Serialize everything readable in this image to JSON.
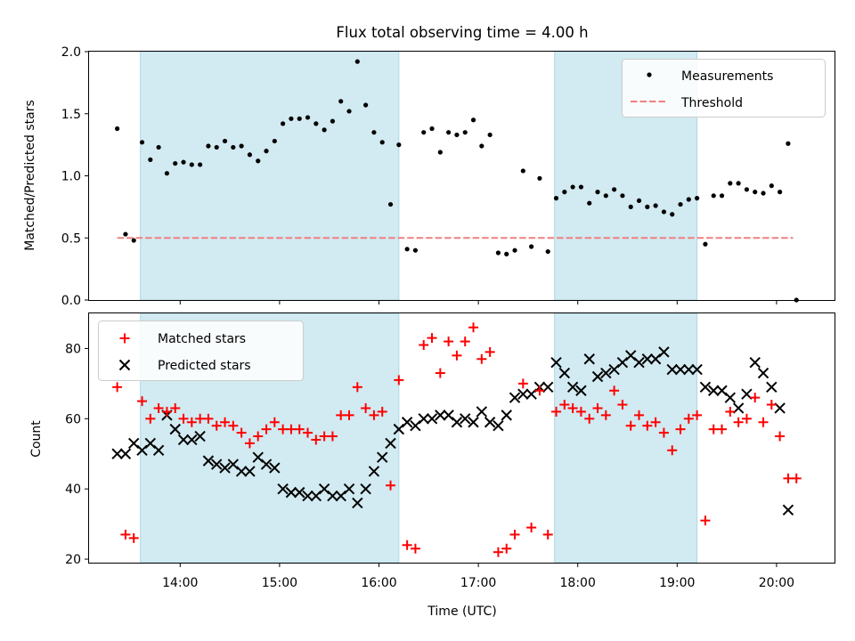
{
  "title": "Flux total observing time = 4.00 h",
  "colors": {
    "measurements": "#000000",
    "threshold": "#f08080",
    "matched": "#ff0000",
    "predicted": "#000000",
    "shade": "#add8e6"
  },
  "chart_data": [
    {
      "type": "scatter",
      "ylabel": "Matched/Predicted stars",
      "xlabel": "",
      "ylim": [
        0.0,
        2.0
      ],
      "yticks": [
        0.0,
        0.5,
        1.0,
        1.5,
        2.0
      ],
      "ytick_labels": [
        "0.0",
        "0.5",
        "1.0",
        "1.5",
        "2.0"
      ],
      "grid": false,
      "legend_position": "top-right",
      "legend": [
        "Measurements",
        "Threshold"
      ],
      "threshold": {
        "name": "Threshold",
        "value": 0.5,
        "x_range": [
          "13:22",
          "20:10"
        ]
      },
      "series": [
        {
          "name": "Measurements",
          "x": [
            "13:22",
            "13:27",
            "13:32",
            "13:37",
            "13:42",
            "13:47",
            "13:52",
            "13:57",
            "14:02",
            "14:07",
            "14:12",
            "14:17",
            "14:22",
            "14:27",
            "14:32",
            "14:37",
            "14:42",
            "14:47",
            "14:52",
            "14:57",
            "15:02",
            "15:07",
            "15:12",
            "15:17",
            "15:22",
            "15:27",
            "15:32",
            "15:37",
            "15:42",
            "15:47",
            "15:52",
            "15:57",
            "16:02",
            "16:07",
            "16:12",
            "16:17",
            "16:22",
            "16:27",
            "16:32",
            "16:37",
            "16:42",
            "16:47",
            "16:52",
            "16:57",
            "17:02",
            "17:07",
            "17:12",
            "17:17",
            "17:22",
            "17:27",
            "17:32",
            "17:37",
            "17:42",
            "17:47",
            "17:52",
            "17:57",
            "18:02",
            "18:07",
            "18:12",
            "18:17",
            "18:22",
            "18:27",
            "18:32",
            "18:37",
            "18:42",
            "18:47",
            "18:52",
            "18:57",
            "19:02",
            "19:07",
            "19:12",
            "19:17",
            "19:22",
            "19:27",
            "19:32",
            "19:37",
            "19:42",
            "19:47",
            "19:52",
            "19:57",
            "20:02",
            "20:07",
            "20:12"
          ],
          "y": [
            1.38,
            0.53,
            0.48,
            1.27,
            1.13,
            1.23,
            1.02,
            1.1,
            1.11,
            1.09,
            1.09,
            1.24,
            1.23,
            1.28,
            1.23,
            1.24,
            1.17,
            1.12,
            1.2,
            1.28,
            1.42,
            1.46,
            1.46,
            1.47,
            1.42,
            1.37,
            1.44,
            1.6,
            1.52,
            1.92,
            1.57,
            1.35,
            1.27,
            0.77,
            1.25,
            0.41,
            0.4,
            1.35,
            1.38,
            1.19,
            1.35,
            1.33,
            1.35,
            1.45,
            1.24,
            1.33,
            0.38,
            0.37,
            0.4,
            1.04,
            0.43,
            0.98,
            0.39,
            0.82,
            0.87,
            0.91,
            0.91,
            0.78,
            0.87,
            0.84,
            0.89,
            0.84,
            0.75,
            0.8,
            0.75,
            0.76,
            0.71,
            0.69,
            0.77,
            0.81,
            0.82,
            0.45,
            0.84,
            0.84,
            0.94,
            0.94,
            0.89,
            0.87,
            0.86,
            0.92,
            0.87,
            1.26,
            0.0
          ]
        }
      ]
    },
    {
      "type": "scatter",
      "xlabel": "Time (UTC)",
      "ylabel": "Count",
      "ylim": [
        19,
        90
      ],
      "yticks": [
        20,
        40,
        60,
        80
      ],
      "ytick_labels": [
        "20",
        "40",
        "60",
        "80"
      ],
      "xlim": [
        "13:05",
        "20:35"
      ],
      "xticks": [
        "14:00",
        "15:00",
        "16:00",
        "17:00",
        "18:00",
        "19:00",
        "20:00"
      ],
      "grid": false,
      "legend_position": "top-left",
      "legend": [
        "Matched stars",
        "Predicted stars"
      ],
      "shaded_intervals": [
        [
          "13:36",
          "16:12"
        ],
        [
          "17:46",
          "19:12"
        ]
      ],
      "series": [
        {
          "name": "Matched stars",
          "x": [
            "13:22",
            "13:27",
            "13:32",
            "13:37",
            "13:42",
            "13:47",
            "13:52",
            "13:57",
            "14:02",
            "14:07",
            "14:12",
            "14:17",
            "14:22",
            "14:27",
            "14:32",
            "14:37",
            "14:42",
            "14:47",
            "14:52",
            "14:57",
            "15:02",
            "15:07",
            "15:12",
            "15:17",
            "15:22",
            "15:27",
            "15:32",
            "15:37",
            "15:42",
            "15:47",
            "15:52",
            "15:57",
            "16:02",
            "16:07",
            "16:12",
            "16:17",
            "16:22",
            "16:27",
            "16:32",
            "16:37",
            "16:42",
            "16:47",
            "16:52",
            "16:57",
            "17:02",
            "17:07",
            "17:12",
            "17:17",
            "17:22",
            "17:27",
            "17:32",
            "17:37",
            "17:42",
            "17:47",
            "17:52",
            "17:57",
            "18:02",
            "18:07",
            "18:12",
            "18:17",
            "18:22",
            "18:27",
            "18:32",
            "18:37",
            "18:42",
            "18:47",
            "18:52",
            "18:57",
            "19:02",
            "19:07",
            "19:12",
            "19:17",
            "19:22",
            "19:27",
            "19:32",
            "19:37",
            "19:42",
            "19:47",
            "19:52",
            "19:57",
            "20:02",
            "20:07",
            "20:12"
          ],
          "y": [
            69,
            27,
            26,
            65,
            60,
            63,
            62,
            63,
            60,
            59,
            60,
            60,
            58,
            59,
            58,
            56,
            53,
            55,
            57,
            59,
            57,
            57,
            57,
            56,
            54,
            55,
            55,
            61,
            61,
            69,
            63,
            61,
            62,
            41,
            71,
            24,
            23,
            81,
            83,
            73,
            82,
            78,
            82,
            86,
            77,
            79,
            22,
            23,
            27,
            70,
            29,
            68,
            27,
            62,
            64,
            63,
            62,
            60,
            63,
            61,
            68,
            64,
            58,
            61,
            58,
            59,
            56,
            51,
            57,
            60,
            61,
            31,
            57,
            57,
            62,
            59,
            60,
            66,
            59,
            64,
            55,
            43,
            43
          ]
        },
        {
          "name": "Predicted stars",
          "x": [
            "13:22",
            "13:27",
            "13:32",
            "13:37",
            "13:42",
            "13:47",
            "13:52",
            "13:57",
            "14:02",
            "14:07",
            "14:12",
            "14:17",
            "14:22",
            "14:27",
            "14:32",
            "14:37",
            "14:42",
            "14:47",
            "14:52",
            "14:57",
            "15:02",
            "15:07",
            "15:12",
            "15:17",
            "15:22",
            "15:27",
            "15:32",
            "15:37",
            "15:42",
            "15:47",
            "15:52",
            "15:57",
            "16:02",
            "16:07",
            "16:12",
            "16:17",
            "16:22",
            "16:27",
            "16:32",
            "16:37",
            "16:42",
            "16:47",
            "16:52",
            "16:57",
            "17:02",
            "17:07",
            "17:12",
            "17:17",
            "17:22",
            "17:27",
            "17:32",
            "17:37",
            "17:42",
            "17:47",
            "17:52",
            "17:57",
            "18:02",
            "18:07",
            "18:12",
            "18:17",
            "18:22",
            "18:27",
            "18:32",
            "18:37",
            "18:42",
            "18:47",
            "18:52",
            "18:57",
            "19:02",
            "19:07",
            "19:12",
            "19:17",
            "19:22",
            "19:27",
            "19:32",
            "19:37",
            "19:42",
            "19:47",
            "19:52",
            "19:57",
            "20:02",
            "20:07"
          ],
          "y": [
            50,
            50,
            53,
            51,
            53,
            51,
            61,
            57,
            54,
            54,
            55,
            48,
            47,
            46,
            47,
            45,
            45,
            49,
            47,
            46,
            40,
            39,
            39,
            38,
            38,
            40,
            38,
            38,
            40,
            36,
            40,
            45,
            49,
            53,
            57,
            59,
            58,
            60,
            60,
            61,
            61,
            59,
            60,
            59,
            62,
            59,
            58,
            61,
            66,
            67,
            67,
            69,
            69,
            76,
            73,
            69,
            68,
            77,
            72,
            73,
            74,
            76,
            78,
            76,
            77,
            77,
            79,
            74,
            74,
            74,
            74,
            69,
            68,
            68,
            66,
            63,
            67,
            76,
            73,
            69,
            63,
            34
          ]
        }
      ]
    }
  ]
}
